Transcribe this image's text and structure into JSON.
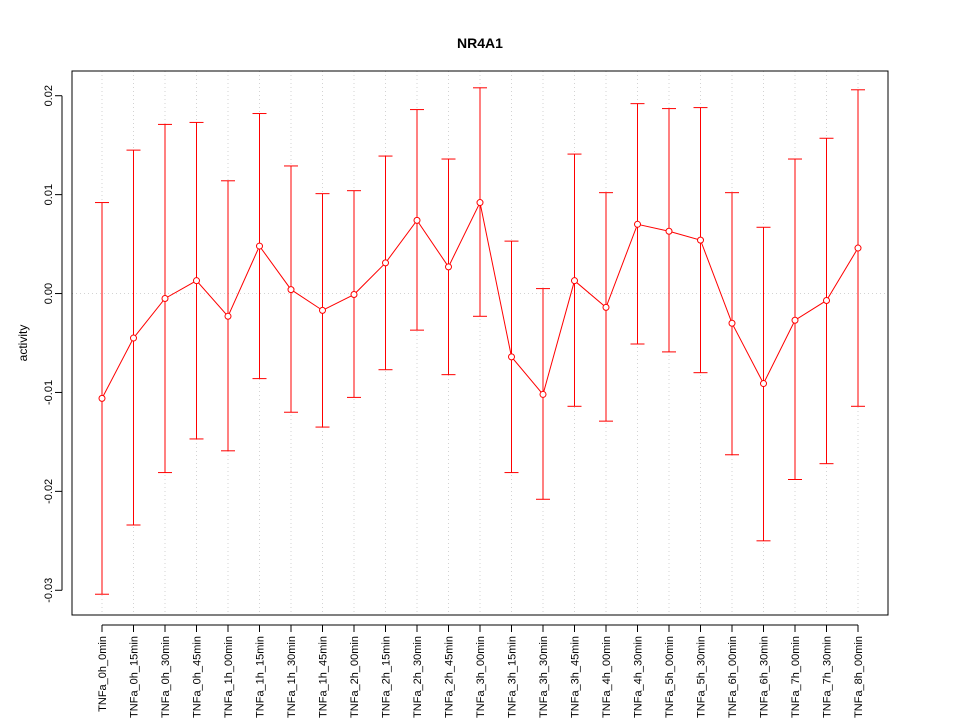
{
  "chart_data": {
    "type": "line",
    "title": "NR4A1",
    "xlabel": "",
    "ylabel": "activity",
    "ylim": [
      -0.0325,
      0.0225
    ],
    "yticks": [
      -0.03,
      -0.02,
      -0.01,
      0.0,
      0.01,
      0.02
    ],
    "ytick_labels": [
      "-0.03",
      "-0.02",
      "-0.01",
      "0.00",
      "0.01",
      "0.02"
    ],
    "grid": true,
    "series_color": "#ff0000",
    "grid_color": "#d3d3d3",
    "categories": [
      "TNFa_0h_0min",
      "TNFa_0h_15min",
      "TNFa_0h_30min",
      "TNFa_0h_45min",
      "TNFa_1h_00min",
      "TNFa_1h_15min",
      "TNFa_1h_30min",
      "TNFa_1h_45min",
      "TNFa_2h_00min",
      "TNFa_2h_15min",
      "TNFa_2h_30min",
      "TNFa_2h_45min",
      "TNFa_3h_00min",
      "TNFa_3h_15min",
      "TNFa_3h_30min",
      "TNFa_3h_45min",
      "TNFa_4h_00min",
      "TNFa_4h_30min",
      "TNFa_5h_00min",
      "TNFa_5h_30min",
      "TNFa_6h_00min",
      "TNFa_6h_30min",
      "TNFa_7h_00min",
      "TNFa_7h_30min",
      "TNFa_8h_00min"
    ],
    "values": [
      -0.0106,
      -0.0045,
      -0.0005,
      0.0013,
      -0.0023,
      0.0048,
      0.0004,
      -0.0017,
      -0.0001,
      0.0031,
      0.0074,
      0.0027,
      0.0092,
      -0.0064,
      -0.0102,
      0.0013,
      -0.0014,
      0.007,
      0.0063,
      0.0054,
      -0.003,
      -0.0091,
      -0.0027,
      -0.0007,
      0.0046
    ],
    "upper": [
      0.0092,
      0.0145,
      0.0171,
      0.0173,
      0.0114,
      0.0182,
      0.0129,
      0.0101,
      0.0104,
      0.0139,
      0.0186,
      0.0136,
      0.0208,
      0.0053,
      0.0005,
      0.0141,
      0.0102,
      0.0192,
      0.0187,
      0.0188,
      0.0102,
      0.0067,
      0.0136,
      0.0157,
      0.0206
    ],
    "lower": [
      -0.0304,
      -0.0234,
      -0.0181,
      -0.0147,
      -0.0159,
      -0.0086,
      -0.012,
      -0.0135,
      -0.0105,
      -0.0077,
      -0.0037,
      -0.0082,
      -0.0023,
      -0.0181,
      -0.0208,
      -0.0114,
      -0.0129,
      -0.0051,
      -0.0059,
      -0.008,
      -0.0163,
      -0.025,
      -0.0188,
      -0.0172,
      -0.0114
    ]
  }
}
